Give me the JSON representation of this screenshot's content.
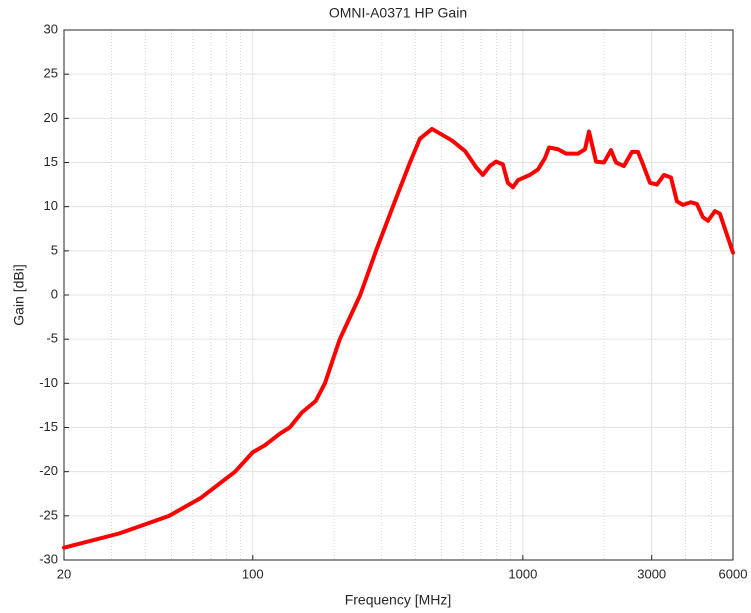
{
  "chart_data": {
    "type": "line",
    "title": "OMNI-A0371 HP Gain",
    "xlabel": "Frequency [MHz]",
    "ylabel": "Gain [dBi]",
    "xscale": "log",
    "grid": true,
    "xlim": [
      20,
      6000
    ],
    "ylim": [
      -30,
      30
    ],
    "xticks": [
      20,
      100,
      1000,
      3000,
      6000
    ],
    "xminorticks": [
      30,
      40,
      50,
      60,
      70,
      80,
      90,
      200,
      300,
      400,
      500,
      600,
      700,
      800,
      900,
      2000,
      3000,
      4000,
      5000
    ],
    "yticks": [
      -30,
      -25,
      -20,
      -15,
      -10,
      -5,
      0,
      5,
      10,
      15,
      20,
      25,
      30
    ],
    "series": [
      {
        "name": "Gain",
        "color": "#ff0000",
        "x": [
          20,
          32,
          49,
          64,
          86,
          100,
          111,
          126,
          137,
          152,
          171,
          185,
          210,
          250,
          286,
          330,
          382,
          416,
          461,
          546,
          611,
          670,
          711,
          755,
          795,
          843,
          880,
          919,
          959,
          1062,
          1137,
          1208,
          1250,
          1350,
          1445,
          1600,
          1699,
          1758,
          1866,
          1997,
          2120,
          2213,
          2368,
          2535,
          2669,
          2784,
          2956,
          3138,
          3330,
          3535,
          3720,
          3916,
          4190,
          4413,
          4645,
          4847,
          5145,
          5366,
          5600,
          6000
        ],
        "values": [
          -28.6,
          -27,
          -25,
          -23,
          -20,
          -17.8,
          -17,
          -15.7,
          -15,
          -13.3,
          -12,
          -10,
          -5,
          0,
          5,
          10,
          15,
          17.7,
          18.8,
          17.5,
          16.3,
          14.5,
          13.6,
          14.6,
          15.1,
          14.8,
          12.7,
          12.2,
          13.0,
          13.6,
          14.2,
          15.5,
          16.7,
          16.5,
          16.0,
          16.0,
          16.5,
          18.5,
          15.1,
          15.0,
          16.4,
          15.0,
          14.6,
          16.2,
          16.2,
          14.8,
          12.7,
          12.5,
          13.6,
          13.3,
          10.6,
          10.2,
          10.5,
          10.3,
          8.8,
          8.4,
          9.5,
          9.2,
          7.5,
          4.8
        ]
      }
    ]
  }
}
